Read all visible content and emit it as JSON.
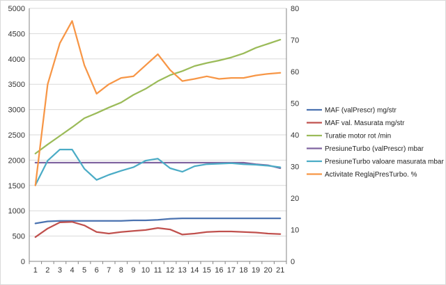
{
  "chart_data": {
    "type": "line",
    "title": "",
    "xlabel": "",
    "ylabel": "",
    "categories": [
      "1",
      "2",
      "3",
      "4",
      "5",
      "6",
      "7",
      "8",
      "9",
      "10",
      "11",
      "12",
      "13",
      "14",
      "15",
      "16",
      "17",
      "18",
      "19",
      "20",
      "21"
    ],
    "ylim": [
      0,
      5000
    ],
    "y2lim": [
      0,
      80
    ],
    "yticks": [
      "0",
      "500",
      "1000",
      "1500",
      "2000",
      "2500",
      "3000",
      "3500",
      "4000",
      "4500",
      "5000"
    ],
    "y2ticks": [
      "0",
      "10",
      "20",
      "30",
      "40",
      "50",
      "60",
      "70",
      "80"
    ],
    "grid": true,
    "legend_position": "right",
    "series": [
      {
        "name": "MAF (valPrescr) mg/str",
        "color": "#4a72b0",
        "axis": "left",
        "values": [
          750,
          790,
          800,
          800,
          800,
          800,
          800,
          800,
          810,
          810,
          820,
          840,
          850,
          850,
          850,
          850,
          850,
          850,
          850,
          850,
          850
        ]
      },
      {
        "name": "MAF val. Masurata  mg/str",
        "color": "#c0504d",
        "axis": "left",
        "values": [
          480,
          650,
          770,
          780,
          710,
          580,
          550,
          580,
          600,
          620,
          660,
          630,
          530,
          550,
          580,
          590,
          590,
          580,
          570,
          550,
          540
        ]
      },
      {
        "name": "Turatie motor rot  /min",
        "color": "#9bbb59",
        "axis": "left",
        "values": [
          2130,
          2310,
          2480,
          2650,
          2830,
          2930,
          3040,
          3140,
          3290,
          3410,
          3560,
          3680,
          3760,
          3860,
          3920,
          3970,
          4030,
          4110,
          4220,
          4300,
          4380
        ]
      },
      {
        "name": "PresiuneTurbo (valPrescr)  mbar",
        "color": "#7f63a0",
        "axis": "left",
        "values": [
          1950,
          1950,
          1950,
          1950,
          1950,
          1950,
          1950,
          1950,
          1950,
          1950,
          1950,
          1950,
          1950,
          1950,
          1950,
          1950,
          1950,
          1950,
          1920,
          1900,
          1840
        ]
      },
      {
        "name": "PresiuneTurbo valoare masurata   mbar",
        "color": "#4bacc6",
        "axis": "left",
        "values": [
          1510,
          1990,
          2210,
          2210,
          1830,
          1610,
          1710,
          1790,
          1860,
          1990,
          2030,
          1840,
          1770,
          1880,
          1920,
          1930,
          1940,
          1920,
          1910,
          1890,
          1860
        ]
      },
      {
        "name": "Activitate ReglajPresTurbo.  %",
        "color": "#f79646",
        "axis": "right",
        "values": [
          24,
          56,
          69,
          76,
          62,
          53,
          56,
          58,
          58.5,
          62,
          65.5,
          60.5,
          57,
          57.7,
          58.5,
          57.7,
          58,
          58,
          58.8,
          59.3,
          59.6
        ]
      }
    ]
  }
}
